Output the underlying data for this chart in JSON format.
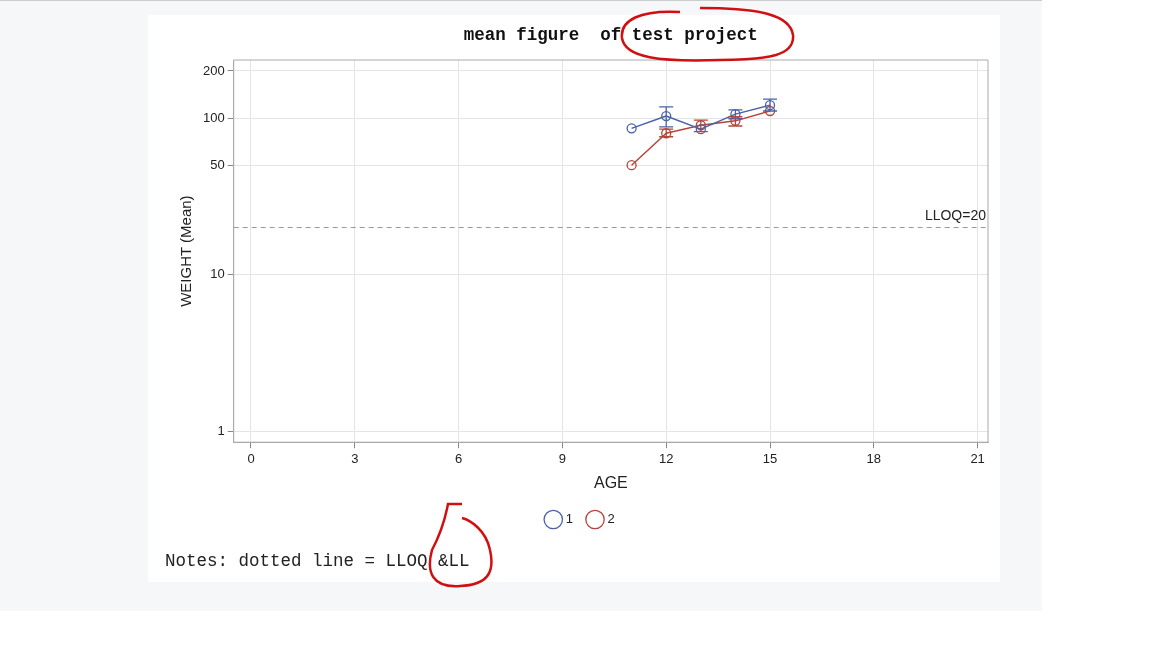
{
  "chart_data": {
    "type": "line",
    "title": "mean figure  of test project",
    "xlabel": "AGE",
    "ylabel": "WEIGHT (Mean)",
    "x": [
      11,
      12,
      13,
      14,
      15
    ],
    "series": [
      {
        "name": "1",
        "color": "#4a63a8",
        "values": [
          86,
          103,
          85,
          106,
          121
        ],
        "errors": [
          null,
          [
            88,
            118
          ],
          null,
          [
            99,
            113
          ],
          [
            111,
            132
          ]
        ]
      },
      {
        "name": "2",
        "color": "#b5453a",
        "values": [
          50,
          80,
          90,
          96,
          111
        ],
        "errors": [
          null,
          [
            76,
            85
          ],
          [
            82,
            97
          ],
          [
            89,
            102
          ],
          null
        ]
      }
    ],
    "xlim": [
      -0.5,
      21.3
    ],
    "xticks": [
      0,
      3,
      6,
      9,
      12,
      15,
      18,
      21
    ],
    "ylim": [
      0.85,
      235
    ],
    "yticks": [
      1,
      10,
      50,
      100,
      200
    ],
    "log": "y",
    "grid": true,
    "legend": "bottom",
    "marker": "circle",
    "line_style": "solid",
    "ref_lines": [
      {
        "axis": "y",
        "value": 20,
        "label": "LLOQ=20",
        "line_style": "dashed",
        "color": "#999999"
      }
    ],
    "annotations": [
      "Notes: dotted line = LLOQ &LL"
    ]
  }
}
